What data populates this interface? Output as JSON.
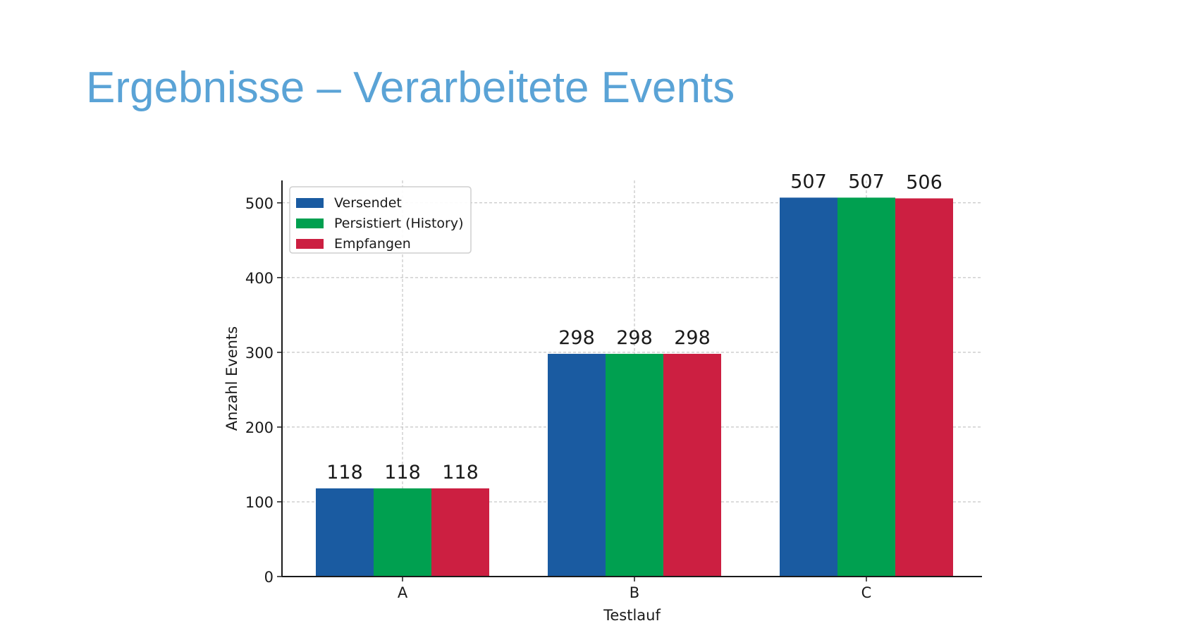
{
  "slide": {
    "title": "Ergebnisse – Verarbeitete Events"
  },
  "chart_data": {
    "type": "bar",
    "title": "",
    "xlabel": "Testlauf",
    "ylabel": "Anzahl Events",
    "categories": [
      "A",
      "B",
      "C"
    ],
    "series": [
      {
        "name": "Versendet",
        "color": "#1a5ba1",
        "values": [
          118,
          298,
          507
        ]
      },
      {
        "name": "Persistiert (History)",
        "color": "#00a050",
        "values": [
          118,
          298,
          507
        ]
      },
      {
        "name": "Empfangen",
        "color": "#cc1f41",
        "values": [
          118,
          298,
          506
        ]
      }
    ],
    "ylim": [
      0,
      530
    ],
    "yticks": [
      0,
      100,
      200,
      300,
      400,
      500
    ],
    "grid": true,
    "grid_style": "dashed",
    "legend_position": "upper-left",
    "data_labels": true
  }
}
